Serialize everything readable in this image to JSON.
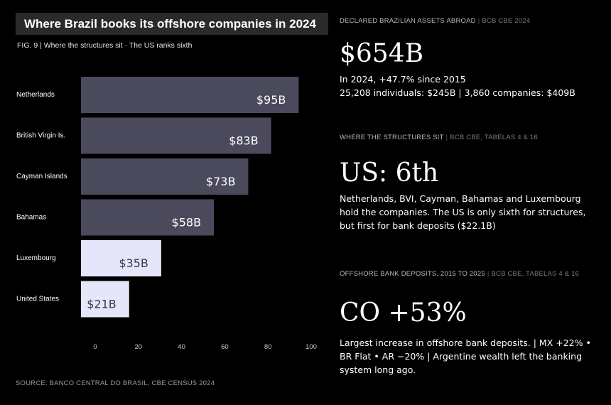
{
  "left": {
    "title": "Where Brazil books its offshore companies in 2024",
    "caption": "FIG. 9 | Where the structures sit · The US ranks sixth",
    "source": "SOURCE: BANCO CENTRAL DO BRASIL, CBE CENSUS 2024"
  },
  "chart_data": {
    "type": "bar",
    "orientation": "horizontal",
    "categories": [
      "Netherlands",
      "British Virgin Is.",
      "Cayman Islands",
      "Bahamas",
      "Luxembourg",
      "United States"
    ],
    "values": [
      95,
      83,
      73,
      58,
      35,
      21
    ],
    "value_labels": [
      "$95B",
      "$83B",
      "$73B",
      "$58B",
      "$35B",
      "$21B"
    ],
    "xlim": [
      0,
      100
    ],
    "ticks": [
      0,
      20,
      40,
      60,
      80,
      100
    ],
    "grid": false,
    "colors": {
      "dark_bar": "#4a4a5c",
      "light_bar": "#e6e6fa",
      "dark_label": "#ffffff",
      "light_label": "#3a3a4a"
    },
    "bar_styles": [
      "dark",
      "dark",
      "dark",
      "dark",
      "light",
      "light"
    ]
  },
  "blocks": [
    {
      "header": "DECLARED BRAZILIAN ASSETS ABROAD",
      "source": "BCB CBE 2024",
      "big": "$654B",
      "text": [
        "In 2024, +47.7% since 2015",
        "25,208 individuals: $245B | 3,860 companies: $409B"
      ]
    },
    {
      "header": "WHERE THE STRUCTURES SIT",
      "source": "BCB CBE, TABELAS 4 & 16",
      "big": "US: 6th",
      "text": [
        "Netherlands, BVI, Cayman, Bahamas and Luxembourg",
        "hold the companies. The US is only sixth for structures,",
        "but first for bank deposits ($22.1B)"
      ]
    },
    {
      "header": "OFFSHORE BANK DEPOSITS, 2015 TO 2025",
      "source": "BCB CBE, TABELAS 4 & 16",
      "big": "CO +53%",
      "text": [
        "Largest increase in offshore bank deposits. | MX +22% •",
        "BR Flat  • AR −20% | Argentine wealth left the banking",
        "system long ago."
      ]
    }
  ]
}
